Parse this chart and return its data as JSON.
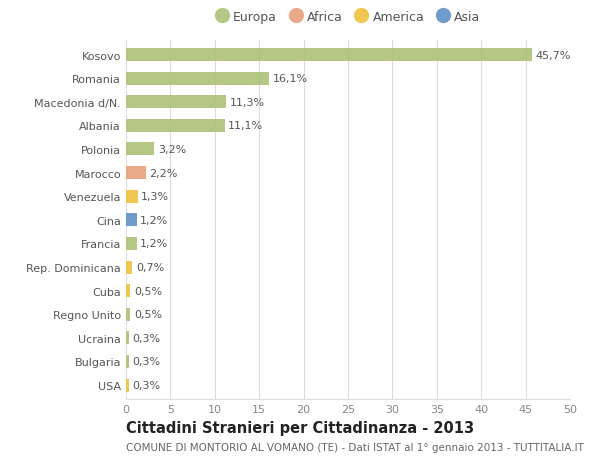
{
  "countries": [
    "Kosovo",
    "Romania",
    "Macedonia d/N.",
    "Albania",
    "Polonia",
    "Marocco",
    "Venezuela",
    "Cina",
    "Francia",
    "Rep. Dominicana",
    "Cuba",
    "Regno Unito",
    "Ucraina",
    "Bulgaria",
    "USA"
  ],
  "values": [
    45.7,
    16.1,
    11.3,
    11.1,
    3.2,
    2.2,
    1.3,
    1.2,
    1.2,
    0.7,
    0.5,
    0.5,
    0.3,
    0.3,
    0.3
  ],
  "labels": [
    "45,7%",
    "16,1%",
    "11,3%",
    "11,1%",
    "3,2%",
    "2,2%",
    "1,3%",
    "1,2%",
    "1,2%",
    "0,7%",
    "0,5%",
    "0,5%",
    "0,3%",
    "0,3%",
    "0,3%"
  ],
  "colors": [
    "#adc178",
    "#adc178",
    "#adc178",
    "#adc178",
    "#adc178",
    "#e8a07a",
    "#f0c040",
    "#6090c8",
    "#adc178",
    "#f0c040",
    "#f0c040",
    "#adc178",
    "#adc178",
    "#adc178",
    "#f0c040"
  ],
  "legend_labels": [
    "Europa",
    "Africa",
    "America",
    "Asia"
  ],
  "legend_colors": [
    "#adc178",
    "#e8a07a",
    "#f0c040",
    "#6090c8"
  ],
  "xlim": [
    0,
    50
  ],
  "xticks": [
    0,
    5,
    10,
    15,
    20,
    25,
    30,
    35,
    40,
    45,
    50
  ],
  "title": "Cittadini Stranieri per Cittadinanza - 2013",
  "subtitle": "COMUNE DI MONTORIO AL VOMANO (TE) - Dati ISTAT al 1° gennaio 2013 - TUTTITALIA.IT",
  "bar_height": 0.55,
  "background_color": "#ffffff",
  "grid_color": "#dddddd",
  "label_fontsize": 8,
  "tick_fontsize": 8,
  "ytick_fontsize": 8,
  "title_fontsize": 10.5,
  "subtitle_fontsize": 7.5,
  "legend_fontsize": 9
}
